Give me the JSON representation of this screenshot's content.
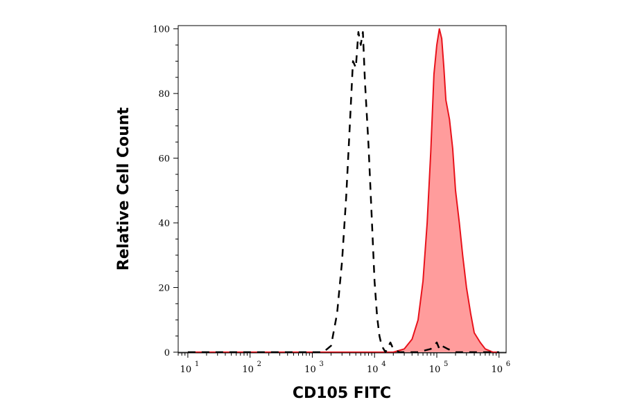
{
  "chart_data": {
    "type": "area",
    "title": "",
    "xlabel": "CD105 FITC",
    "ylabel": "Relative Cell Count",
    "x_scale": "log10",
    "xlim": [
      7,
      1300000
    ],
    "ylim": [
      0,
      101
    ],
    "grid": false,
    "legend": "none",
    "x_ticks": [
      {
        "base": "10",
        "exp": "1",
        "value": 10
      },
      {
        "base": "10",
        "exp": "2",
        "value": 100
      },
      {
        "base": "10",
        "exp": "3",
        "value": 1000
      },
      {
        "base": "10",
        "exp": "4",
        "value": 10000
      },
      {
        "base": "10",
        "exp": "5",
        "value": 100000
      },
      {
        "base": "10",
        "exp": "6",
        "value": 1000000
      }
    ],
    "y_ticks": [
      {
        "label": "0",
        "value": 0
      },
      {
        "label": "20",
        "value": 20
      },
      {
        "label": "40",
        "value": 40
      },
      {
        "label": "60",
        "value": 60
      },
      {
        "label": "80",
        "value": 80
      },
      {
        "label": "100",
        "value": 100
      }
    ],
    "series": [
      {
        "style": "dashed-black-outline",
        "color": "#000000",
        "x": [
          10,
          100,
          300,
          1000,
          1500,
          2000,
          2500,
          3000,
          3500,
          4000,
          4500,
          5000,
          5500,
          6000,
          6500,
          7000,
          8000,
          9000,
          10000,
          11000,
          12000,
          13000,
          15000,
          18000,
          20000,
          25000,
          50000,
          80000,
          100000,
          110000,
          120000,
          150000,
          200000,
          300000,
          500000,
          1000000
        ],
        "y": [
          0,
          0,
          0,
          0,
          0,
          2,
          12,
          28,
          48,
          70,
          90,
          88,
          99,
          95,
          99,
          84,
          64,
          42,
          22,
          11,
          5,
          2,
          0,
          3,
          1,
          0,
          0,
          1,
          3,
          1,
          2,
          1,
          0,
          0,
          0,
          0
        ]
      },
      {
        "style": "filled-red",
        "color": "#e8121b",
        "fill": "#ff9c9c",
        "x": [
          10,
          100,
          1000,
          10000,
          20000,
          30000,
          40000,
          50000,
          60000,
          70000,
          80000,
          90000,
          100000,
          110000,
          120000,
          130000,
          140000,
          160000,
          180000,
          200000,
          230000,
          260000,
          300000,
          350000,
          400000,
          500000,
          600000,
          800000,
          1000000
        ],
        "y": [
          0,
          0,
          0,
          0,
          0,
          1,
          4,
          10,
          22,
          40,
          62,
          86,
          95,
          100,
          97,
          88,
          78,
          72,
          63,
          50,
          40,
          30,
          20,
          12,
          6,
          3,
          1,
          0,
          0
        ]
      }
    ]
  }
}
